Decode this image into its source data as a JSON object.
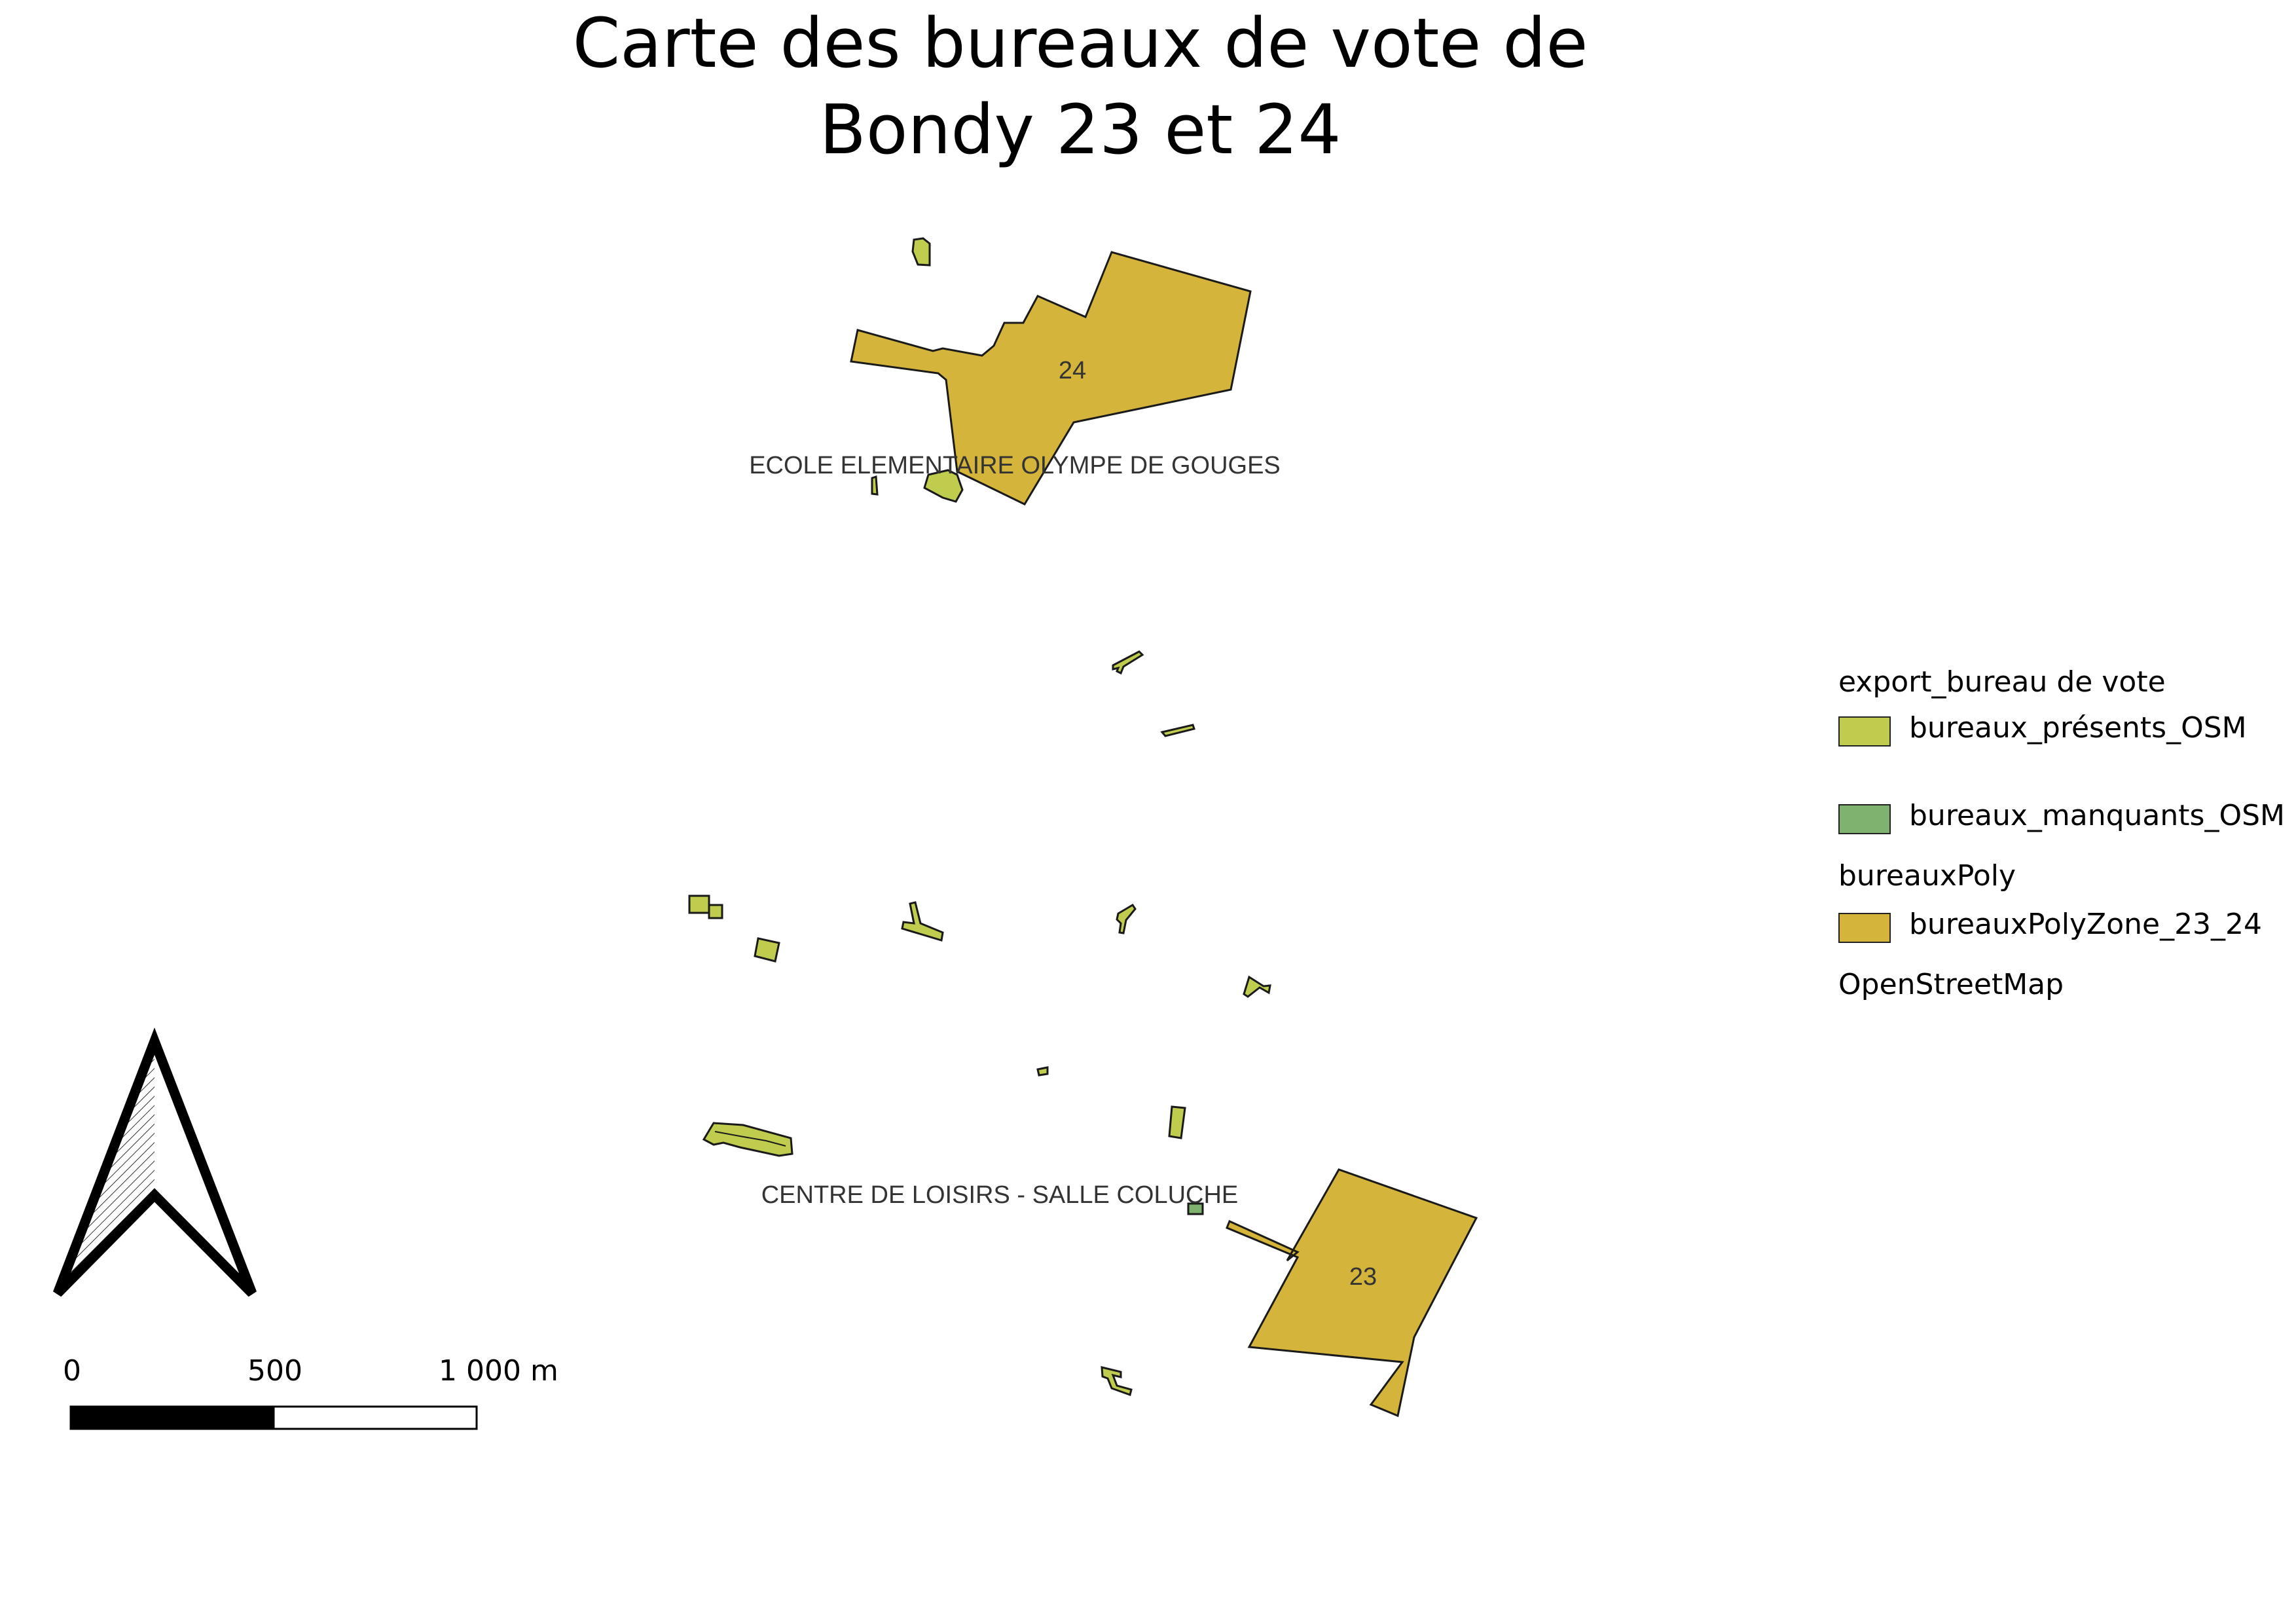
{
  "map": {
    "title_line1": "Carte des bureaux de vote de",
    "title_line2": "Bondy 23 et 24",
    "zone_labels": [
      "24",
      "23"
    ],
    "place_labels": [
      "ECOLE ELEMENTAIRE OLYMPE DE GOUGES",
      "CENTRE DE LOISIRS - SALLE COLUCHE"
    ]
  },
  "legend": {
    "group1": "export_bureau de vote",
    "item1": "bureaux_présents_OSM",
    "item2": "bureaux_manquants_OSM",
    "group2": "bureauxPoly",
    "item3": "bureauxPolyZone_23_24",
    "group3": "OpenStreetMap"
  },
  "scale": {
    "tick0": "0",
    "tick1": "500",
    "tick2": "1 000 m"
  },
  "colors": {
    "present": "#bfcc4e",
    "missing": "#7fb26e",
    "zone": "#d4b43a",
    "outline": "#1a1a1a"
  },
  "icons": [
    "north-arrow-icon"
  ]
}
